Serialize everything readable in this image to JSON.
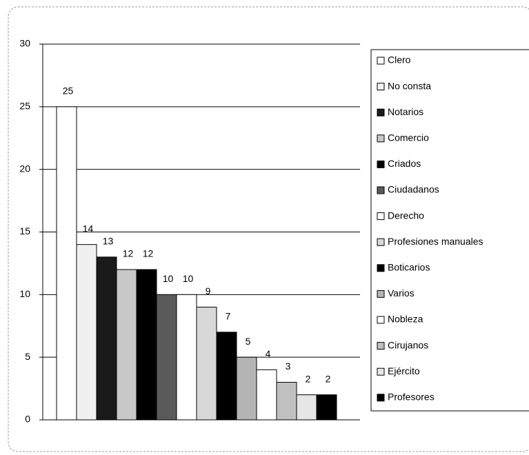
{
  "chart_data": {
    "type": "bar",
    "series": [
      {
        "name": "Clero",
        "color": "#ffffff",
        "values": [
          25
        ]
      },
      {
        "name": "No consta",
        "color": "#f0f0f0",
        "values": [
          14
        ]
      },
      {
        "name": "Notarios",
        "color": "#1a1a1a",
        "values": [
          13
        ]
      },
      {
        "name": "Comercio",
        "color": "#c8c8c8",
        "values": [
          12
        ]
      },
      {
        "name": "Criados",
        "color": "#000000",
        "values": [
          12
        ]
      },
      {
        "name": "Ciudadanos",
        "color": "#5a5a5a",
        "values": [
          10
        ]
      },
      {
        "name": "Derecho",
        "color": "#ffffff",
        "values": [
          10
        ]
      },
      {
        "name": "Profesiones manuales",
        "color": "#d8d8d8",
        "values": [
          9
        ]
      },
      {
        "name": "Boticarios",
        "color": "#000000",
        "values": [
          7
        ]
      },
      {
        "name": "Varios",
        "color": "#b4b4b4",
        "values": [
          5
        ]
      },
      {
        "name": "Nobleza",
        "color": "#ffffff",
        "values": [
          4
        ]
      },
      {
        "name": "Cirujanos",
        "color": "#c0c0c0",
        "values": [
          3
        ]
      },
      {
        "name": "Ejército",
        "color": "#e6e6e6",
        "values": [
          2
        ]
      },
      {
        "name": "Profesores",
        "color": "#000000",
        "values": [
          2
        ]
      }
    ],
    "ylim": [
      0,
      30
    ],
    "yticks": [
      0,
      5,
      10,
      15,
      20,
      25,
      30
    ],
    "grid": true,
    "legend": "right"
  }
}
